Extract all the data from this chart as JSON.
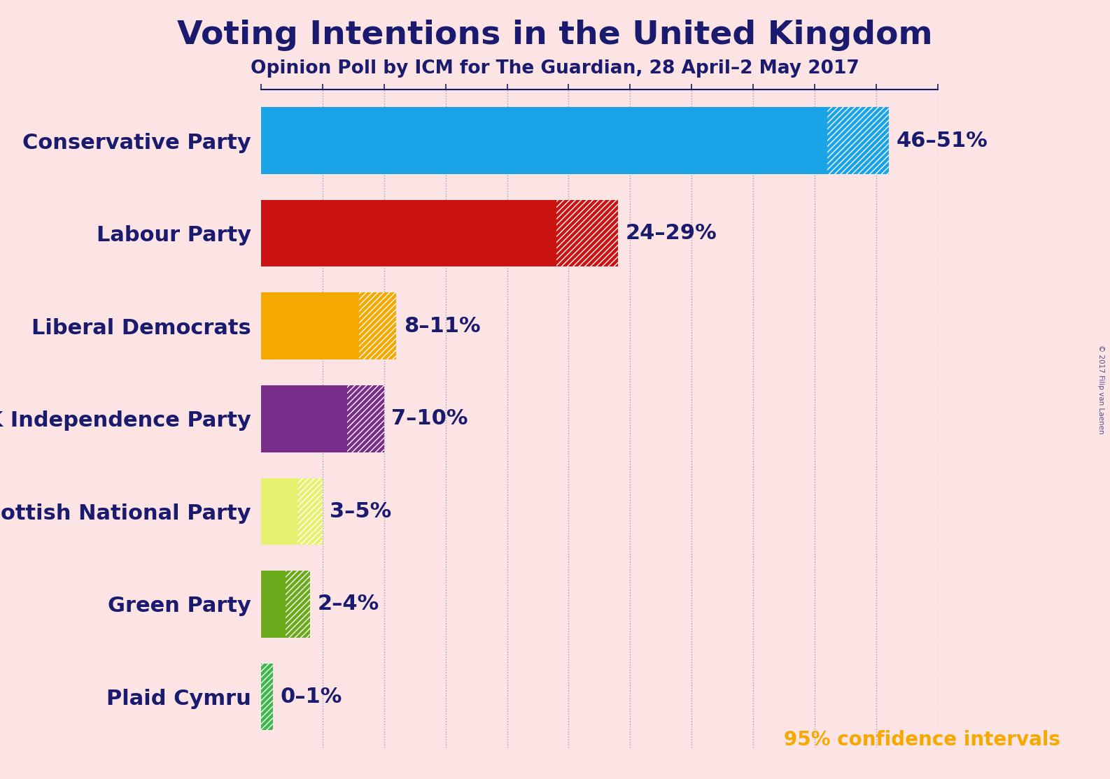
{
  "title": "Voting Intentions in the United Kingdom",
  "subtitle": "Opinion Poll by ICM for The Guardian, 28 April–2 May 2017",
  "watermark": "© 2017 Filip van Laenen",
  "background_color": "#fce4e4",
  "title_color": "#1a1a6e",
  "subtitle_color": "#1a1a6e",
  "parties": [
    "Conservative Party",
    "Labour Party",
    "Liberal Democrats",
    "UK Independence Party",
    "Scottish National Party",
    "Green Party",
    "Plaid Cymru"
  ],
  "low": [
    46,
    24,
    8,
    7,
    3,
    2,
    0
  ],
  "high": [
    51,
    29,
    11,
    10,
    5,
    4,
    1
  ],
  "labels": [
    "46–51%",
    "24–29%",
    "8–11%",
    "7–10%",
    "3–5%",
    "2–4%",
    "0–1%"
  ],
  "colors": [
    "#1ba3e8",
    "#cc1111",
    "#f5a800",
    "#7b2d8b",
    "#e8f070",
    "#6aaa1b",
    "#3db84b"
  ],
  "label_color": "#1a1a6e",
  "label_fontsize": 22,
  "party_fontsize": 22,
  "title_fontsize": 34,
  "subtitle_fontsize": 19,
  "confidence_text": "95% confidence intervals",
  "confidence_color": "#f5a800",
  "confidence_fontsize": 20,
  "xlim": [
    0,
    55
  ],
  "tick_positions": [
    0,
    5,
    10,
    15,
    20,
    25,
    30,
    35,
    40,
    45,
    50,
    55
  ],
  "spine_color": "#1a1a6e",
  "dotted_line_color": "#8888bb"
}
